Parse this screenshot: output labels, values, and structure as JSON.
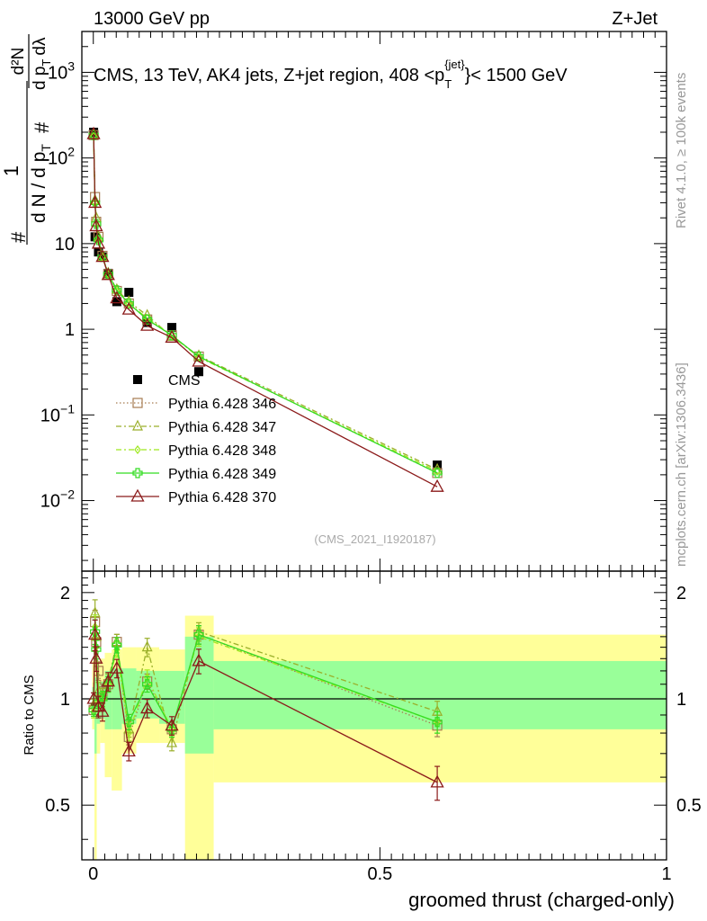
{
  "header": {
    "left": "13000 GeV pp",
    "right": "Z+Jet"
  },
  "side_labels": {
    "rivet": "Rivet 4.1.0, ≥ 100k events",
    "mcplots": "mcplots.cern.ch [arXiv:1306.3436]"
  },
  "colors": {
    "cms": "#000000",
    "p346": "#a67c52",
    "p347": "#9aaf2a",
    "p348": "#9ee81f",
    "p349": "#33dd22",
    "p370": "#8b1a1a",
    "band_yellow": "#ffff99",
    "band_green": "#99ff99"
  },
  "chart_data": [
    {
      "type": "line",
      "panel": "main",
      "title": "CMS, 13 TeV, AK4 jets, Z+jet region, 408 <p_T^{jet}< 1500 GeV",
      "title_parts": {
        "prefix": "CMS, 13 TeV, AK4 jets, Z+jet region, 408 <p",
        "sub": "T",
        "sup": "{jet}",
        "suffix": "}< 1500 GeV"
      },
      "ylabel": "1/dN/dp_T  d²N/dp_T dλ",
      "ylabel_parts": {
        "frac1_num": "1",
        "frac1_den": "d N / d p",
        "frac1_den_sub": "T",
        "frac2_num": "d²N",
        "frac2_den": "d p",
        "frac2_den_sub": "T",
        "frac2_den_tail": "dλ",
        "hash": "#"
      },
      "watermark": "(CMS_2021_I1920187)",
      "yscale": "log",
      "ylim": [
        0.0015,
        3000
      ],
      "xlim": [
        -0.02,
        1.0
      ],
      "y_ticks": [
        {
          "v": 0.01,
          "base": "10",
          "exp": "−2"
        },
        {
          "v": 0.1,
          "base": "10",
          "exp": "−1"
        },
        {
          "v": 1,
          "base": "1",
          "exp": ""
        },
        {
          "v": 10,
          "base": "10",
          "exp": ""
        },
        {
          "v": 100,
          "base": "10",
          "exp": "2"
        },
        {
          "v": 1000,
          "base": "10",
          "exp": "3"
        }
      ],
      "legend_position": "center-left",
      "series": [
        {
          "name": "CMS",
          "key": "cms",
          "style": "data",
          "x": [
            0.0005,
            0.003,
            0.009,
            0.016,
            0.026,
            0.041,
            0.062,
            0.094,
            0.137,
            0.184,
            0.6
          ],
          "y": [
            200,
            12,
            8,
            7,
            4.5,
            2.1,
            2.7,
            1.2,
            1.05,
            0.32,
            0.026
          ]
        },
        {
          "name": "Pythia 6.428 346",
          "key": "p346",
          "marker": "square",
          "dash": "1.5,2.5",
          "x": [
            0.0005,
            0.003,
            0.005,
            0.009,
            0.016,
            0.026,
            0.041,
            0.062,
            0.094,
            0.137,
            0.184,
            0.6
          ],
          "y": [
            185,
            35,
            18,
            12,
            7.2,
            4.4,
            2.8,
            2.0,
            1.3,
            0.85,
            0.48,
            0.021
          ]
        },
        {
          "name": "Pythia 6.428 347",
          "key": "p347",
          "marker": "triangle",
          "dash": "6,3,2,3",
          "x": [
            0.0005,
            0.003,
            0.005,
            0.009,
            0.016,
            0.026,
            0.041,
            0.062,
            0.094,
            0.137,
            0.184,
            0.6
          ],
          "y": [
            190,
            32,
            20,
            12,
            7.0,
            4.5,
            2.9,
            2.1,
            1.45,
            0.82,
            0.49,
            0.023
          ]
        },
        {
          "name": "Pythia 6.428 348",
          "key": "p348",
          "marker": "diamond",
          "dash": "6,3,2,3",
          "x": [
            0.0005,
            0.003,
            0.005,
            0.009,
            0.016,
            0.026,
            0.041,
            0.062,
            0.094,
            0.137,
            0.184,
            0.6
          ],
          "y": [
            180,
            30,
            17,
            11,
            7.0,
            4.4,
            2.8,
            2.0,
            1.35,
            0.85,
            0.47,
            0.022
          ]
        },
        {
          "name": "Pythia 6.428 349",
          "key": "p349",
          "marker": "cross",
          "dash": "",
          "x": [
            0.0005,
            0.003,
            0.005,
            0.009,
            0.016,
            0.026,
            0.041,
            0.062,
            0.094,
            0.137,
            0.184,
            0.6
          ],
          "y": [
            185,
            30,
            17,
            11,
            7.0,
            4.4,
            2.85,
            2.0,
            1.3,
            0.85,
            0.48,
            0.021
          ]
        },
        {
          "name": "Pythia 6.428 370",
          "key": "p370",
          "marker": "triangle-open",
          "dash": "",
          "x": [
            0.0005,
            0.003,
            0.005,
            0.009,
            0.016,
            0.026,
            0.041,
            0.062,
            0.094,
            0.137,
            0.184,
            0.6
          ],
          "y": [
            190,
            30,
            16,
            10,
            7.0,
            4.3,
            2.3,
            1.7,
            1.1,
            0.8,
            0.42,
            0.0145
          ]
        }
      ]
    },
    {
      "type": "line",
      "panel": "ratio",
      "ylabel": "Ratio to CMS",
      "xlabel": "groomed thrust (charged-only)",
      "xlim": [
        -0.02,
        1.0
      ],
      "ylim": [
        0.35,
        2.3
      ],
      "x_ticks": [
        {
          "v": 0,
          "label": "0"
        },
        {
          "v": 0.5,
          "label": "0.5"
        },
        {
          "v": 1,
          "label": "1"
        }
      ],
      "y_ticks": [
        {
          "v": 0.5,
          "label": "0.5"
        },
        {
          "v": 1,
          "label": "1"
        },
        {
          "v": 2,
          "label": "2"
        }
      ],
      "bands": [
        {
          "x0": -0.002,
          "x1": 0.002,
          "y_lo": 0.82,
          "y_hi": 1.28,
          "g_lo": 0.92,
          "g_hi": 1.08
        },
        {
          "x0": 0.002,
          "x1": 0.006,
          "y_lo": 0.35,
          "y_hi": 1.3,
          "g_lo": 0.7,
          "g_hi": 1.15
        },
        {
          "x0": 0.006,
          "x1": 0.012,
          "y_lo": 0.7,
          "y_hi": 1.28,
          "g_lo": 0.85,
          "g_hi": 1.12
        },
        {
          "x0": 0.012,
          "x1": 0.02,
          "y_lo": 0.75,
          "y_hi": 1.3,
          "g_lo": 0.88,
          "g_hi": 1.12
        },
        {
          "x0": 0.02,
          "x1": 0.032,
          "y_lo": 0.6,
          "y_hi": 1.35,
          "g_lo": 0.82,
          "g_hi": 1.2
        },
        {
          "x0": 0.032,
          "x1": 0.05,
          "y_lo": 0.55,
          "y_hi": 1.38,
          "g_lo": 0.82,
          "g_hi": 1.22
        },
        {
          "x0": 0.05,
          "x1": 0.075,
          "y_lo": 0.7,
          "y_hi": 1.4,
          "g_lo": 0.85,
          "g_hi": 1.22
        },
        {
          "x0": 0.075,
          "x1": 0.115,
          "y_lo": 0.75,
          "y_hi": 1.4,
          "g_lo": 0.88,
          "g_hi": 1.2
        },
        {
          "x0": 0.115,
          "x1": 0.16,
          "y_lo": 0.75,
          "y_hi": 1.38,
          "g_lo": 0.85,
          "g_hi": 1.2
        },
        {
          "x0": 0.16,
          "x1": 0.21,
          "y_lo": 0.35,
          "y_hi": 1.72,
          "g_lo": 0.7,
          "g_hi": 1.5
        },
        {
          "x0": 0.21,
          "x1": 1.0,
          "y_lo": 0.58,
          "y_hi": 1.52,
          "g_lo": 0.82,
          "g_hi": 1.28
        }
      ],
      "series": [
        {
          "name": "Pythia 6.428 346",
          "key": "p346",
          "marker": "square",
          "dash": "1.5,2.5",
          "x": [
            0.0005,
            0.003,
            0.005,
            0.009,
            0.016,
            0.026,
            0.041,
            0.062,
            0.094,
            0.137,
            0.184,
            0.6
          ],
          "y": [
            0.93,
            1.65,
            1.45,
            1.2,
            1.05,
            1.1,
            1.45,
            0.78,
            1.12,
            0.82,
            1.52,
            0.84
          ],
          "err": [
            0.04,
            0.08,
            0.06,
            0.06,
            0.05,
            0.05,
            0.05,
            0.05,
            0.05,
            0.05,
            0.06,
            0.07
          ]
        },
        {
          "name": "Pythia 6.428 347",
          "key": "p347",
          "marker": "triangle",
          "dash": "6,3,2,3",
          "x": [
            0.0005,
            0.003,
            0.005,
            0.009,
            0.016,
            0.026,
            0.041,
            0.062,
            0.094,
            0.137,
            0.184,
            0.6
          ],
          "y": [
            0.96,
            1.75,
            1.5,
            1.05,
            1.02,
            1.12,
            1.45,
            0.82,
            1.4,
            0.75,
            1.55,
            0.92
          ],
          "err": [
            0.04,
            0.09,
            0.07,
            0.06,
            0.05,
            0.05,
            0.05,
            0.05,
            0.06,
            0.05,
            0.06,
            0.07
          ]
        },
        {
          "name": "Pythia 6.428 348",
          "key": "p348",
          "marker": "diamond",
          "dash": "6,3,2,3",
          "x": [
            0.0005,
            0.003,
            0.005,
            0.009,
            0.016,
            0.026,
            0.041,
            0.062,
            0.094,
            0.137,
            0.184,
            0.6
          ],
          "y": [
            0.92,
            1.6,
            1.4,
            0.98,
            1.0,
            1.1,
            1.38,
            0.8,
            1.15,
            0.82,
            1.5,
            0.86
          ],
          "err": [
            0.04,
            0.08,
            0.06,
            0.06,
            0.05,
            0.05,
            0.05,
            0.05,
            0.05,
            0.05,
            0.06,
            0.07
          ]
        },
        {
          "name": "Pythia 6.428 349",
          "key": "p349",
          "marker": "cross",
          "dash": "",
          "x": [
            0.0005,
            0.003,
            0.005,
            0.009,
            0.016,
            0.026,
            0.041,
            0.062,
            0.094,
            0.137,
            0.184,
            0.6
          ],
          "y": [
            0.93,
            1.55,
            1.38,
            0.98,
            1.0,
            1.1,
            1.42,
            0.86,
            1.1,
            0.82,
            1.52,
            0.86
          ],
          "err": [
            0.04,
            0.08,
            0.06,
            0.06,
            0.05,
            0.05,
            0.05,
            0.05,
            0.05,
            0.05,
            0.06,
            0.07
          ]
        },
        {
          "name": "Pythia 6.428 370",
          "key": "p370",
          "marker": "triangle-open",
          "dash": "",
          "x": [
            0.0005,
            0.003,
            0.005,
            0.009,
            0.016,
            0.026,
            0.041,
            0.062,
            0.094,
            0.137,
            0.184,
            0.6
          ],
          "y": [
            1.0,
            1.52,
            1.3,
            0.95,
            0.92,
            1.12,
            1.22,
            0.71,
            0.94,
            0.84,
            1.28,
            0.58
          ],
          "err": [
            0.04,
            0.1,
            0.08,
            0.07,
            0.06,
            0.06,
            0.06,
            0.06,
            0.06,
            0.06,
            0.08,
            0.11
          ]
        }
      ]
    }
  ]
}
